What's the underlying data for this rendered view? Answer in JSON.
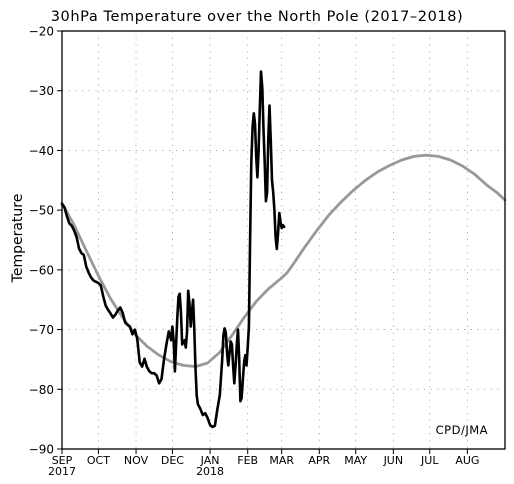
{
  "chart_data": {
    "type": "line",
    "title": "30hPa Temperature over the North Pole (2017–2018)",
    "ylabel": "Temperature",
    "xlabel": "",
    "ylim": [
      -90,
      -20
    ],
    "y_ticks": [
      -90,
      -80,
      -70,
      -60,
      -50,
      -40,
      -30,
      -20
    ],
    "x_range_days": [
      0,
      365
    ],
    "x_ticks": [
      {
        "day": 0,
        "label": "SEP",
        "sublabel": "2017"
      },
      {
        "day": 30,
        "label": "OCT",
        "sublabel": ""
      },
      {
        "day": 61,
        "label": "NOV",
        "sublabel": ""
      },
      {
        "day": 91,
        "label": "DEC",
        "sublabel": ""
      },
      {
        "day": 122,
        "label": "JAN",
        "sublabel": "2018"
      },
      {
        "day": 153,
        "label": "FEB",
        "sublabel": ""
      },
      {
        "day": 181,
        "label": "MAR",
        "sublabel": ""
      },
      {
        "day": 212,
        "label": "APR",
        "sublabel": ""
      },
      {
        "day": 242,
        "label": "MAY",
        "sublabel": ""
      },
      {
        "day": 273,
        "label": "JUN",
        "sublabel": ""
      },
      {
        "day": 303,
        "label": "JUL",
        "sublabel": ""
      },
      {
        "day": 334,
        "label": "AUG",
        "sublabel": ""
      }
    ],
    "grid": true,
    "credit": "CPD/JMA",
    "series": [
      {
        "color": "#999999",
        "points": [
          [
            0,
            -48.8
          ],
          [
            10,
            -52.5
          ],
          [
            20,
            -56.8
          ],
          [
            30,
            -61.0
          ],
          [
            40,
            -64.8
          ],
          [
            50,
            -68.0
          ],
          [
            60,
            -70.8
          ],
          [
            70,
            -72.8
          ],
          [
            80,
            -74.3
          ],
          [
            90,
            -75.4
          ],
          [
            100,
            -76.0
          ],
          [
            110,
            -76.2
          ],
          [
            120,
            -75.6
          ],
          [
            130,
            -73.8
          ],
          [
            140,
            -71.0
          ],
          [
            150,
            -68.0
          ],
          [
            160,
            -65.3
          ],
          [
            170,
            -63.2
          ],
          [
            180,
            -61.5
          ],
          [
            185,
            -60.6
          ],
          [
            190,
            -59.2
          ],
          [
            200,
            -56.2
          ],
          [
            210,
            -53.4
          ],
          [
            220,
            -50.8
          ],
          [
            230,
            -48.6
          ],
          [
            240,
            -46.7
          ],
          [
            250,
            -45.0
          ],
          [
            260,
            -43.6
          ],
          [
            270,
            -42.5
          ],
          [
            280,
            -41.6
          ],
          [
            290,
            -41.0
          ],
          [
            300,
            -40.8
          ],
          [
            310,
            -41.0
          ],
          [
            320,
            -41.6
          ],
          [
            330,
            -42.6
          ],
          [
            340,
            -44.0
          ],
          [
            350,
            -45.8
          ],
          [
            358,
            -47.0
          ],
          [
            365,
            -48.3
          ]
        ]
      },
      {
        "color": "#000000",
        "points": [
          [
            0,
            -49.0
          ],
          [
            2,
            -49.5
          ],
          [
            4,
            -51.0
          ],
          [
            6,
            -52.2
          ],
          [
            8,
            -52.6
          ],
          [
            10,
            -53.4
          ],
          [
            12,
            -54.5
          ],
          [
            14,
            -56.4
          ],
          [
            16,
            -57.2
          ],
          [
            18,
            -57.5
          ],
          [
            20,
            -59.5
          ],
          [
            22,
            -60.5
          ],
          [
            24,
            -61.3
          ],
          [
            26,
            -61.8
          ],
          [
            28,
            -62.0
          ],
          [
            30,
            -62.2
          ],
          [
            32,
            -62.6
          ],
          [
            34,
            -64.5
          ],
          [
            36,
            -66.0
          ],
          [
            38,
            -66.7
          ],
          [
            40,
            -67.3
          ],
          [
            42,
            -68.0
          ],
          [
            44,
            -67.5
          ],
          [
            46,
            -66.8
          ],
          [
            48,
            -66.3
          ],
          [
            50,
            -67.2
          ],
          [
            52,
            -68.8
          ],
          [
            54,
            -69.2
          ],
          [
            56,
            -69.5
          ],
          [
            58,
            -70.8
          ],
          [
            60,
            -70.0
          ],
          [
            62,
            -71.5
          ],
          [
            64,
            -75.5
          ],
          [
            66,
            -76.2
          ],
          [
            68,
            -74.9
          ],
          [
            70,
            -76.3
          ],
          [
            72,
            -77.0
          ],
          [
            74,
            -77.3
          ],
          [
            76,
            -77.3
          ],
          [
            78,
            -77.7
          ],
          [
            80,
            -79.0
          ],
          [
            82,
            -78.3
          ],
          [
            84,
            -75.0
          ],
          [
            86,
            -72.5
          ],
          [
            88,
            -70.3
          ],
          [
            90,
            -71.8
          ],
          [
            91,
            -69.5
          ],
          [
            92,
            -72.0
          ],
          [
            93,
            -77.0
          ],
          [
            94,
            -72.5
          ],
          [
            95,
            -68.0
          ],
          [
            96,
            -64.5
          ],
          [
            97,
            -64.0
          ],
          [
            98,
            -67.0
          ],
          [
            99,
            -72.5
          ],
          [
            100,
            -72.0
          ],
          [
            101,
            -71.8
          ],
          [
            102,
            -73.0
          ],
          [
            103,
            -70.5
          ],
          [
            104,
            -63.5
          ],
          [
            105,
            -65.5
          ],
          [
            106,
            -69.5
          ],
          [
            107,
            -67.0
          ],
          [
            108,
            -65.0
          ],
          [
            109,
            -70.0
          ],
          [
            110,
            -76.5
          ],
          [
            111,
            -81.0
          ],
          [
            112,
            -82.5
          ],
          [
            114,
            -83.3
          ],
          [
            116,
            -84.3
          ],
          [
            118,
            -84.0
          ],
          [
            120,
            -84.8
          ],
          [
            122,
            -86.0
          ],
          [
            124,
            -86.3
          ],
          [
            126,
            -86.1
          ],
          [
            128,
            -83.3
          ],
          [
            130,
            -81.0
          ],
          [
            131,
            -78.0
          ],
          [
            132,
            -75.0
          ],
          [
            133,
            -71.0
          ],
          [
            134,
            -69.8
          ],
          [
            135,
            -70.5
          ],
          [
            136,
            -74.0
          ],
          [
            137,
            -76.0
          ],
          [
            138,
            -74.0
          ],
          [
            139,
            -72.0
          ],
          [
            140,
            -72.5
          ],
          [
            141,
            -76.0
          ],
          [
            142,
            -79.0
          ],
          [
            143,
            -76.0
          ],
          [
            144,
            -72.5
          ],
          [
            145,
            -70.0
          ],
          [
            146,
            -75.0
          ],
          [
            147,
            -82.0
          ],
          [
            148,
            -81.5
          ],
          [
            149,
            -78.5
          ],
          [
            150,
            -75.5
          ],
          [
            151,
            -74.3
          ],
          [
            152,
            -76.0
          ],
          [
            153,
            -73.0
          ],
          [
            154,
            -69.5
          ],
          [
            155,
            -55.0
          ],
          [
            156,
            -42.0
          ],
          [
            157,
            -36.0
          ],
          [
            158,
            -33.8
          ],
          [
            159,
            -35.5
          ],
          [
            160,
            -41.0
          ],
          [
            161,
            -44.5
          ],
          [
            162,
            -40.0
          ],
          [
            163,
            -33.0
          ],
          [
            164,
            -26.8
          ],
          [
            165,
            -29.5
          ],
          [
            166,
            -36.5
          ],
          [
            167,
            -42.0
          ],
          [
            168,
            -48.5
          ],
          [
            169,
            -47.0
          ],
          [
            170,
            -38.0
          ],
          [
            171,
            -32.5
          ],
          [
            172,
            -38.5
          ],
          [
            173,
            -45.0
          ],
          [
            174,
            -47.0
          ],
          [
            175,
            -50.0
          ],
          [
            176,
            -54.5
          ],
          [
            177,
            -56.5
          ],
          [
            178,
            -54.0
          ],
          [
            179,
            -50.5
          ],
          [
            180,
            -52.0
          ],
          [
            181,
            -53.0
          ],
          [
            182,
            -52.5
          ],
          [
            183,
            -52.8
          ]
        ]
      }
    ]
  }
}
